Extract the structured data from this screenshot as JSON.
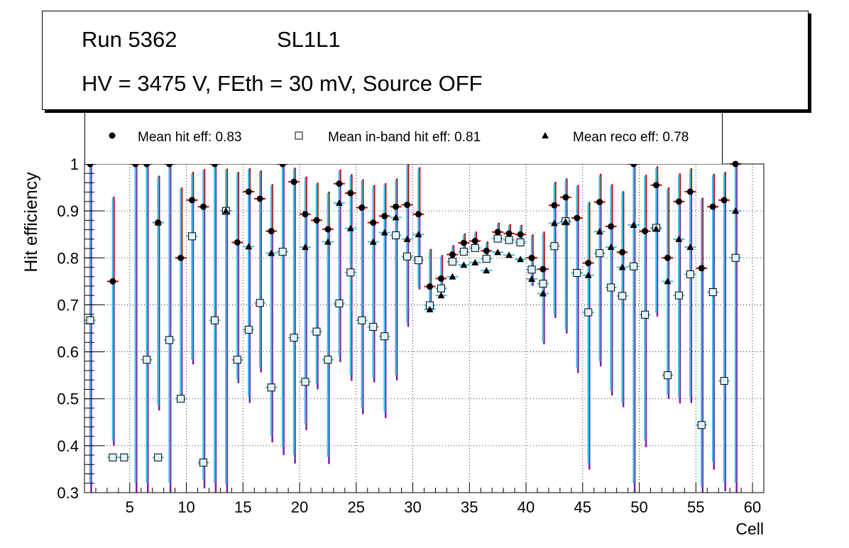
{
  "header": {
    "run": "Run 5362",
    "layer": "SL1L1",
    "conditions": "HV = 3475 V, FEth = 30 mV, Source OFF"
  },
  "legend": {
    "items": [
      {
        "label": "Mean hit  eff: 0.83",
        "marker": "circle"
      },
      {
        "label": "Mean in-band hit eff: 0.81",
        "marker": "open-square"
      },
      {
        "label": "Mean reco eff: 0.78",
        "marker": "triangle"
      }
    ]
  },
  "chart_data": {
    "type": "scatter",
    "title": "",
    "xlabel": "Cell",
    "ylabel": "Hit efficiency",
    "xlim": [
      1,
      61
    ],
    "ylim": [
      0.3,
      1.0
    ],
    "xticks": [
      5,
      10,
      15,
      20,
      25,
      30,
      35,
      40,
      45,
      50,
      55,
      60
    ],
    "yticks": [
      0.3,
      0.4,
      0.5,
      0.6,
      0.7,
      0.8,
      0.9,
      1.0
    ],
    "grid": true,
    "colors": {
      "error_cyan": "#3bbbe6",
      "error_purple": "#7b1fa2",
      "error_red": "#c40000",
      "marker_fill": "#dff2fb"
    },
    "series": [
      {
        "name": "Mean hit  eff: 0.83",
        "marker": "circle",
        "x": [
          1.5,
          3.5,
          5.5,
          6.5,
          7.5,
          8.5,
          9.5,
          10.5,
          11.5,
          12.5,
          13.5,
          14.5,
          15.5,
          16.5,
          17.5,
          18.5,
          19.5,
          20.5,
          21.5,
          22.5,
          23.5,
          24.5,
          25.5,
          26.5,
          27.5,
          28.5,
          29.5,
          30.5,
          31.5,
          32.5,
          33.5,
          34.5,
          35.5,
          36.5,
          37.5,
          38.5,
          39.5,
          40.5,
          41.5,
          42.5,
          43.5,
          44.5,
          45.5,
          46.5,
          47.5,
          48.5,
          49.5,
          50.5,
          51.5,
          52.5,
          53.5,
          54.5,
          55.5,
          56.5,
          57.5,
          58.5
        ],
        "y": [
          1.0,
          0.75,
          1.0,
          1.0,
          0.875,
          1.0,
          0.8,
          0.923,
          0.909,
          1.0,
          0.9,
          0.833,
          0.941,
          0.926,
          0.857,
          1.0,
          0.962,
          0.893,
          0.88,
          0.861,
          0.958,
          0.938,
          0.907,
          0.875,
          0.889,
          0.909,
          0.913,
          0.893,
          0.739,
          0.756,
          0.807,
          0.832,
          0.836,
          0.815,
          0.855,
          0.852,
          0.85,
          0.8,
          0.776,
          0.912,
          0.929,
          0.885,
          0.789,
          0.919,
          0.867,
          0.812,
          1.0,
          0.857,
          0.955,
          0.8,
          0.92,
          0.941,
          0.778,
          0.909,
          0.923,
          1.0
        ],
        "err_low": [
          0.7,
          0.35,
          0.7,
          0.7,
          0.4,
          0.7,
          0.3,
          0.35,
          0.6,
          0.7,
          0.6,
          0.3,
          0.45,
          0.37,
          0.45,
          0.62,
          0.6,
          0.46,
          0.36,
          0.5,
          0.38,
          0.4,
          0.44,
          0.34,
          0.43,
          0.37,
          0.26,
          0.16,
          0.05,
          0.03,
          0.02,
          0.02,
          0.02,
          0.02,
          0.02,
          0.02,
          0.02,
          0.06,
          0.16,
          0.24,
          0.29,
          0.33,
          0.44,
          0.35,
          0.36,
          0.33,
          0.7,
          0.46,
          0.28,
          0.3,
          0.43,
          0.45,
          0.48,
          0.56,
          0.62,
          0.7
        ],
        "err_high": [
          0,
          0.18,
          0,
          0,
          0.1,
          0,
          0.15,
          0.06,
          0.08,
          0,
          0.09,
          0.15,
          0.05,
          0.06,
          0.1,
          0,
          0.03,
          0.08,
          0.08,
          0.08,
          0.03,
          0.04,
          0.06,
          0.08,
          0.07,
          0.06,
          0.09,
          0.1,
          0.08,
          0.05,
          0.02,
          0.02,
          0.02,
          0.02,
          0.02,
          0.02,
          0.02,
          0.05,
          0.08,
          0.05,
          0.04,
          0.07,
          0.13,
          0.06,
          0.09,
          0.13,
          0,
          0.12,
          0.04,
          0.15,
          0.06,
          0.05,
          0.15,
          0.07,
          0.06,
          0
        ]
      },
      {
        "name": "Mean in-band hit eff: 0.81",
        "marker": "open-square",
        "x": [
          1.5,
          3.5,
          4.5,
          6.5,
          7.5,
          8.5,
          9.5,
          10.5,
          11.5,
          12.5,
          13.5,
          14.5,
          15.5,
          16.5,
          17.5,
          18.5,
          19.5,
          20.5,
          21.5,
          22.5,
          23.5,
          24.5,
          25.5,
          26.5,
          27.5,
          28.5,
          29.5,
          30.5,
          31.5,
          32.5,
          33.5,
          34.5,
          35.5,
          36.5,
          37.5,
          38.5,
          39.5,
          40.5,
          41.5,
          42.5,
          43.5,
          44.5,
          45.5,
          46.5,
          47.5,
          48.5,
          49.5,
          50.5,
          51.5,
          52.5,
          53.5,
          54.5,
          55.5,
          56.5,
          57.5,
          58.5
        ],
        "y": [
          0.667,
          0.375,
          0.375,
          0.583,
          0.375,
          0.625,
          0.5,
          0.846,
          0.364,
          0.667,
          0.9,
          0.583,
          0.647,
          0.704,
          0.524,
          0.813,
          0.63,
          0.536,
          0.643,
          0.583,
          0.703,
          0.769,
          0.667,
          0.653,
          0.633,
          0.848,
          0.803,
          0.795,
          0.699,
          0.735,
          0.792,
          0.813,
          0.821,
          0.798,
          0.841,
          0.838,
          0.833,
          0.775,
          0.745,
          0.825,
          0.878,
          0.768,
          0.684,
          0.81,
          0.737,
          0.719,
          0.782,
          0.679,
          0.864,
          0.55,
          0.72,
          0.765,
          0.444,
          0.727,
          0.538,
          0.8
        ]
      },
      {
        "name": "Mean reco eff: 0.78",
        "marker": "triangle",
        "x": [
          7.5,
          13.5,
          15.5,
          17.5,
          20.5,
          22.5,
          23.5,
          24.5,
          26.5,
          27.5,
          28.5,
          29.5,
          30.5,
          31.5,
          32.5,
          33.5,
          34.5,
          35.5,
          36.5,
          37.5,
          38.5,
          39.5,
          40.5,
          41.5,
          42.5,
          43.5,
          45.5,
          46.5,
          47.5,
          48.5,
          49.5,
          51.5,
          52.5,
          53.5,
          54.5,
          58.5
        ],
        "y": [
          0.875,
          0.9,
          0.824,
          0.81,
          0.823,
          0.834,
          0.917,
          0.863,
          0.834,
          0.854,
          0.886,
          0.84,
          0.85,
          0.69,
          0.72,
          0.76,
          0.785,
          0.79,
          0.773,
          0.812,
          0.806,
          0.797,
          0.755,
          0.724,
          0.874,
          0.877,
          0.763,
          0.856,
          0.823,
          0.78,
          0.87,
          0.862,
          0.75,
          0.84,
          0.823,
          0.9
        ]
      }
    ]
  }
}
